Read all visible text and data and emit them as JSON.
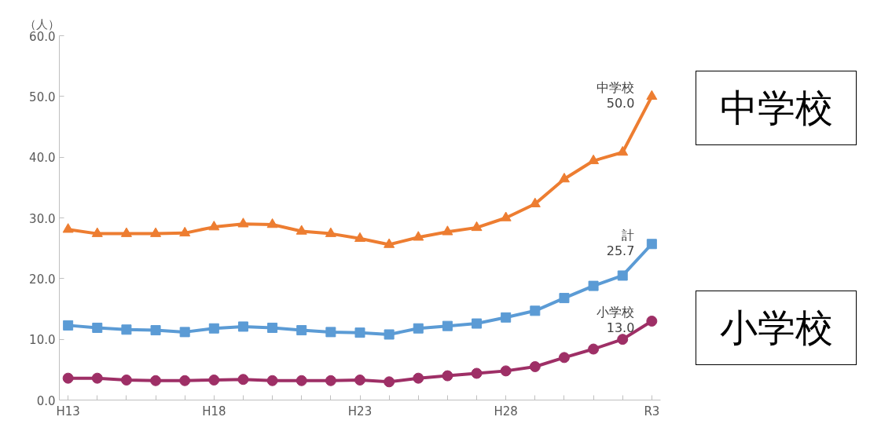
{
  "chart_data": {
    "type": "line",
    "ylabel": "（人）",
    "categories": [
      "H13",
      null,
      null,
      null,
      null,
      "H18",
      null,
      null,
      null,
      null,
      "H23",
      null,
      null,
      null,
      null,
      "H28",
      null,
      null,
      null,
      null,
      "R3"
    ],
    "series": [
      {
        "name": "中学校",
        "color": "#ed7d31",
        "marker": "triangle",
        "values": [
          28.1,
          27.4,
          27.4,
          27.4,
          27.5,
          28.5,
          29.0,
          28.9,
          27.8,
          27.4,
          26.6,
          25.6,
          26.8,
          27.7,
          28.4,
          30.0,
          32.3,
          36.4,
          39.4,
          40.8,
          50.0
        ],
        "value_labels": [
          null,
          null,
          null,
          null,
          null,
          null,
          null,
          null,
          null,
          null,
          null,
          null,
          null,
          null,
          null,
          null,
          null,
          null,
          null,
          null,
          "50.0"
        ]
      },
      {
        "name": "計",
        "color": "#5b9bd5",
        "marker": "square",
        "values": [
          12.3,
          11.9,
          11.6,
          11.5,
          11.2,
          11.8,
          12.1,
          11.9,
          11.5,
          11.2,
          11.1,
          10.8,
          11.8,
          12.2,
          12.6,
          13.6,
          14.7,
          16.8,
          18.8,
          20.5,
          25.7
        ],
        "value_labels": [
          null,
          null,
          null,
          null,
          null,
          null,
          null,
          null,
          null,
          null,
          null,
          null,
          null,
          null,
          null,
          null,
          null,
          null,
          null,
          null,
          "25.7"
        ]
      },
      {
        "name": "小学校",
        "color": "#9e2f66",
        "marker": "circle",
        "values": [
          3.6,
          3.6,
          3.3,
          3.2,
          3.2,
          3.3,
          3.4,
          3.2,
          3.2,
          3.2,
          3.3,
          3.0,
          3.6,
          4.0,
          4.4,
          4.8,
          5.5,
          7.0,
          8.4,
          10.0,
          13.0
        ],
        "value_labels": [
          null,
          null,
          null,
          null,
          null,
          null,
          null,
          null,
          null,
          null,
          null,
          null,
          null,
          null,
          null,
          null,
          null,
          null,
          null,
          null,
          "13.0"
        ]
      }
    ],
    "ylim": [
      0,
      60
    ],
    "yticks": [
      {
        "value": 0,
        "label": "0.0"
      },
      {
        "value": 10,
        "label": "10.0"
      },
      {
        "value": 20,
        "label": "20.0"
      },
      {
        "value": 30,
        "label": "30.0"
      },
      {
        "value": 40,
        "label": "40.0"
      },
      {
        "value": 50,
        "label": "50.0"
      },
      {
        "value": 60,
        "label": "60.0"
      }
    ],
    "grid": false,
    "legend": false,
    "annotations": [
      "中学校",
      "小学校"
    ]
  }
}
